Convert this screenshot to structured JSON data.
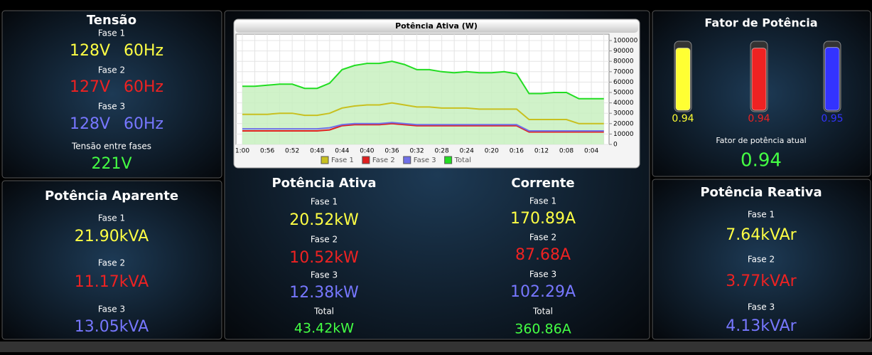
{
  "tensao": {
    "title": "Tensão",
    "phases": [
      {
        "label": "Fase 1",
        "voltage": "128V",
        "frequency": "60Hz"
      },
      {
        "label": "Fase 2",
        "voltage": "127V",
        "frequency": "60Hz"
      },
      {
        "label": "Fase 3",
        "voltage": "128V",
        "frequency": "60Hz"
      }
    ],
    "between_label": "Tensão entre fases",
    "between_value": "221V"
  },
  "aparente": {
    "title": "Potência Aparente",
    "phases": [
      {
        "label": "Fase 1",
        "value": "21.90kVA"
      },
      {
        "label": "Fase 2",
        "value": "11.17kVA"
      },
      {
        "label": "Fase 3",
        "value": "13.05kVA"
      }
    ]
  },
  "ativa": {
    "title": "Potência Ativa",
    "phases": [
      {
        "label": "Fase 1",
        "value": "20.52kW"
      },
      {
        "label": "Fase 2",
        "value": "10.52kW"
      },
      {
        "label": "Fase 3",
        "value": "12.38kW"
      },
      {
        "label": "Total",
        "value": "43.42kW"
      }
    ]
  },
  "corrente": {
    "title": "Corrente",
    "phases": [
      {
        "label": "Fase 1",
        "value": "170.89A"
      },
      {
        "label": "Fase 2",
        "value": "87.68A"
      },
      {
        "label": "Fase 3",
        "value": "102.29A"
      },
      {
        "label": "Total",
        "value": "360.86A"
      }
    ]
  },
  "fator": {
    "title": "Fator de Potência",
    "gauges": {
      "values": [
        0.94,
        0.94,
        0.95
      ],
      "colors": [
        "#ffff33",
        "#ee2222",
        "#3333ff"
      ],
      "ylim": [
        0,
        1
      ]
    },
    "current_label": "Fator de potência atual",
    "current_value": 0.94
  },
  "reativa": {
    "title": "Potência Reativa",
    "phases": [
      {
        "label": "Fase 1",
        "value": "7.64kVAr"
      },
      {
        "label": "Fase 2",
        "value": "3.77kVAr"
      },
      {
        "label": "Fase 3",
        "value": "4.13kVAr"
      }
    ]
  },
  "chart_data": {
    "type": "line",
    "title": "Potência Ativa (W)",
    "categories": [
      "1:00",
      null,
      "0:56",
      null,
      "0:52",
      null,
      "0:48",
      null,
      "0:44",
      null,
      "0:40",
      null,
      "0:36",
      null,
      "0:32",
      null,
      "0:28",
      null,
      "0:24",
      null,
      "0:20",
      null,
      "0:16",
      null,
      "0:12",
      null,
      "0:08",
      null,
      "0:04",
      null
    ],
    "series": [
      {
        "name": "Fase 1",
        "color": "#c8c020",
        "values": [
          29000,
          29000,
          29000,
          30000,
          30000,
          28000,
          28000,
          30000,
          35000,
          37000,
          38000,
          38000,
          40000,
          38000,
          36000,
          36000,
          35000,
          35000,
          35000,
          34000,
          34000,
          34000,
          34000,
          24000,
          24000,
          24000,
          24000,
          20000,
          20000,
          20000
        ]
      },
      {
        "name": "Fase 2",
        "color": "#e02020",
        "values": [
          13000,
          13000,
          13000,
          13000,
          13000,
          13000,
          13000,
          14000,
          18000,
          19000,
          19000,
          19000,
          20000,
          19000,
          18000,
          18000,
          18000,
          18000,
          18000,
          18000,
          18000,
          18000,
          18000,
          12000,
          12000,
          12000,
          12000,
          12000,
          12000,
          12000
        ]
      },
      {
        "name": "Fase 3",
        "color": "#7070e8",
        "values": [
          15000,
          15000,
          15000,
          15000,
          15000,
          15000,
          15000,
          16000,
          19000,
          20000,
          20000,
          20000,
          21000,
          20000,
          19000,
          19000,
          19000,
          19000,
          19000,
          19000,
          19000,
          19000,
          19000,
          13000,
          13000,
          13000,
          13000,
          13000,
          13000,
          13000
        ]
      },
      {
        "name": "Total",
        "color": "#22dd22",
        "fill": "#c8f0c0",
        "values": [
          56000,
          56000,
          57000,
          58000,
          58000,
          54000,
          54000,
          59000,
          72000,
          76000,
          78000,
          78000,
          80000,
          77000,
          72000,
          72000,
          70000,
          69000,
          70000,
          69000,
          69000,
          70000,
          68000,
          49000,
          49000,
          50000,
          50000,
          44000,
          44000,
          44000
        ]
      }
    ],
    "ylim": [
      0,
      100000
    ],
    "yticks": [
      0,
      10000,
      20000,
      30000,
      40000,
      50000,
      60000,
      70000,
      80000,
      90000,
      100000
    ],
    "grid": true,
    "legend": "bottom"
  }
}
